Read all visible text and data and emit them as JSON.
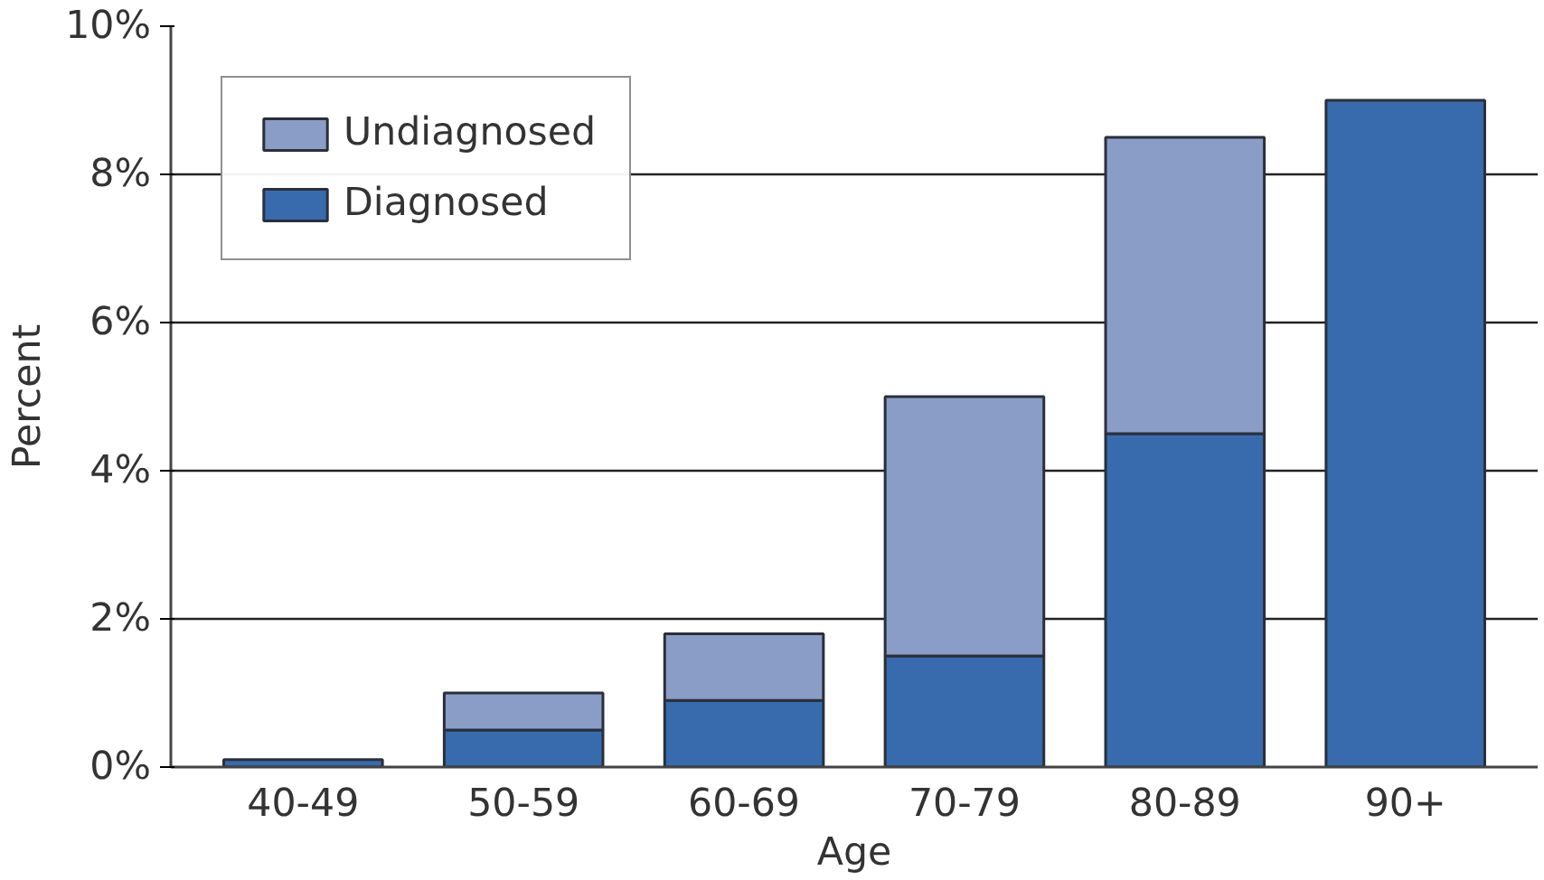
{
  "chart_data": {
    "type": "bar",
    "stacked": true,
    "xlabel": "Age",
    "ylabel": "Percent",
    "categories": [
      "40-49",
      "50-59",
      "60-69",
      "70-79",
      "80-89",
      "90+"
    ],
    "series": [
      {
        "name": "Diagnosed",
        "color": "#376bad",
        "values": [
          0.1,
          0.5,
          0.9,
          1.5,
          4.5,
          9.0
        ]
      },
      {
        "name": "Undiagnosed",
        "color": "#8a9dc7",
        "values": [
          null,
          0.5,
          0.9,
          3.5,
          4.0,
          null
        ]
      }
    ],
    "ylim": [
      0,
      10
    ],
    "yticks": [
      {
        "value": 0,
        "label": "0%"
      },
      {
        "value": 2,
        "label": "2%"
      },
      {
        "value": 4,
        "label": "4%"
      },
      {
        "value": 6,
        "label": "6%"
      },
      {
        "value": 8,
        "label": "8%"
      },
      {
        "value": 10,
        "label": "10%"
      }
    ],
    "grid": "y",
    "legend": "top left"
  }
}
